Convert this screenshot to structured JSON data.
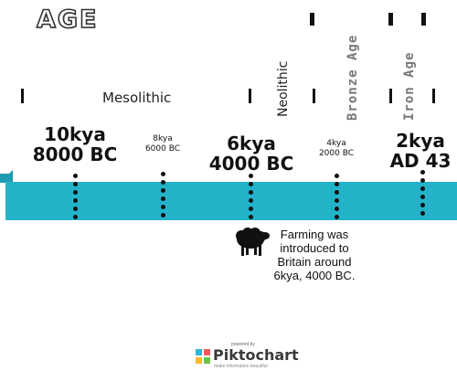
{
  "title": "AGE",
  "eras": {
    "mesolithic": "Mesolithic",
    "neolithic": "Neolithic",
    "bronze_age": "Bronze Age",
    "iron_age": "Iron Age"
  },
  "dates": {
    "d10kya": {
      "kya": "10kya",
      "year": "8000 BC"
    },
    "d8kya": {
      "kya": "8kya",
      "year": "6000 BC"
    },
    "d6kya": {
      "kya": "6kya",
      "year": "4000 BC"
    },
    "d4kya": {
      "kya": "4kya",
      "year": "2000 BC"
    },
    "d2kya": {
      "kya": "2kya",
      "year": "AD 43"
    }
  },
  "note": {
    "line1": "Farming was",
    "line2": "introduced to",
    "line3": "Britain around",
    "line4": "6kya, 4000 BC."
  },
  "footer": {
    "powered_by": "powered by",
    "brand": "Piktochart",
    "tagline": "make information beautiful"
  },
  "colors": {
    "band": "#23b3c8",
    "band_dark": "#1e9bb0"
  }
}
